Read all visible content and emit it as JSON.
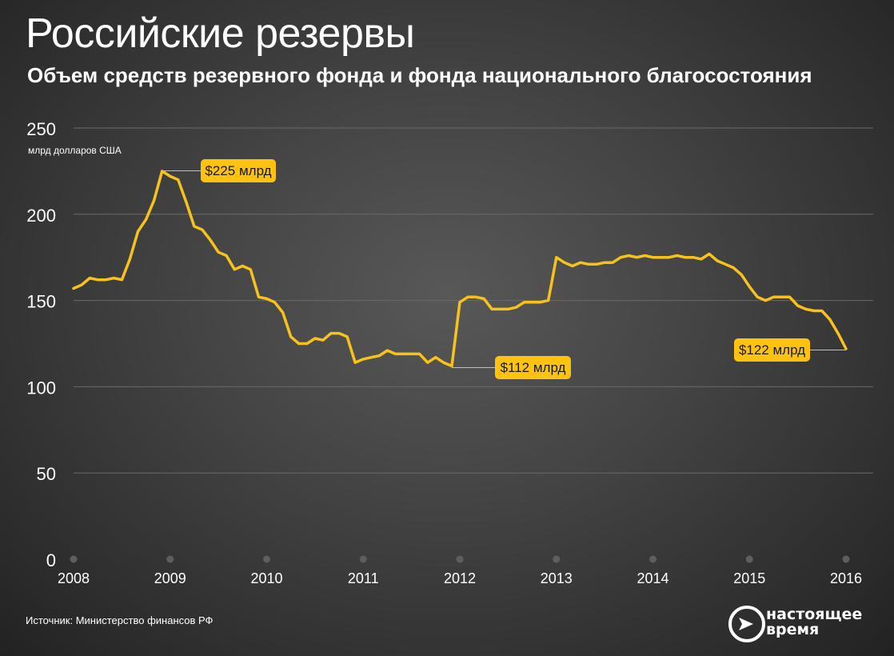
{
  "header": {
    "title": "Российские резервы",
    "subtitle": "Объем средств резервного фонда и фонда национального благосостояния"
  },
  "footer": {
    "source": "Источник: Министерство финансов РФ",
    "logo_line1": "настоящее",
    "logo_line2": "время"
  },
  "colors": {
    "line": "#f7c21b",
    "callout_bg": "#ffc20e",
    "callout_text": "#1a1a1a",
    "grid": "#6a6a6a",
    "text": "#ffffff"
  },
  "chart_data": {
    "type": "line",
    "title": "Российские резервы",
    "subtitle": "Объем средств резервного фонда и фонда национального благосостояния",
    "ylabel": "млрд долларов США",
    "ylim": [
      0,
      250
    ],
    "yticks": [
      0,
      50,
      100,
      150,
      200,
      250
    ],
    "xticks": [
      "2008",
      "2009",
      "2010",
      "2011",
      "2012",
      "2013",
      "2014",
      "2015",
      "2016"
    ],
    "xlim": [
      2008,
      2016
    ],
    "grid": true,
    "series": [
      {
        "x": [
          2008.0,
          2008.083,
          2008.167,
          2008.25,
          2008.333,
          2008.417,
          2008.5,
          2008.583,
          2008.667,
          2008.75,
          2008.833,
          2008.917,
          2009.0,
          2009.083,
          2009.167,
          2009.25,
          2009.333,
          2009.417,
          2009.5,
          2009.583,
          2009.667,
          2009.75,
          2009.833,
          2009.917,
          2010.0,
          2010.083,
          2010.167,
          2010.25,
          2010.333,
          2010.417,
          2010.5,
          2010.583,
          2010.667,
          2010.75,
          2010.833,
          2010.917,
          2011.0,
          2011.083,
          2011.167,
          2011.25,
          2011.333,
          2011.417,
          2011.5,
          2011.583,
          2011.667,
          2011.75,
          2011.833,
          2011.917,
          2012.0,
          2012.083,
          2012.167,
          2012.25,
          2012.333,
          2012.417,
          2012.5,
          2012.583,
          2012.667,
          2012.75,
          2012.833,
          2012.917,
          2013.0,
          2013.083,
          2013.167,
          2013.25,
          2013.333,
          2013.417,
          2013.5,
          2013.583,
          2013.667,
          2013.75,
          2013.833,
          2013.917,
          2014.0,
          2014.083,
          2014.167,
          2014.25,
          2014.333,
          2014.417,
          2014.5,
          2014.583,
          2014.667,
          2014.75,
          2014.833,
          2014.917,
          2015.0,
          2015.083,
          2015.167,
          2015.25,
          2015.333,
          2015.417,
          2015.5,
          2015.583,
          2015.667,
          2015.75,
          2015.833,
          2015.917,
          2016.0
        ],
        "values": [
          157,
          159,
          163,
          162,
          162,
          163,
          162,
          174,
          190,
          197,
          208,
          225,
          222,
          220,
          207,
          193,
          191,
          185,
          178,
          176,
          168,
          170,
          168,
          152,
          151,
          149,
          143,
          129,
          125,
          125,
          128,
          127,
          131,
          131,
          129,
          114,
          116,
          117,
          118,
          121,
          119,
          119,
          119,
          119,
          114,
          117,
          114,
          112,
          149,
          152,
          152,
          151,
          145,
          145,
          145,
          146,
          149,
          149,
          149,
          150,
          175,
          172,
          170,
          172,
          171,
          171,
          172,
          172,
          175,
          176,
          175,
          176,
          175,
          175,
          175,
          176,
          175,
          175,
          174,
          177,
          173,
          171,
          169,
          165,
          158,
          152,
          150,
          152,
          152,
          152,
          147,
          145,
          144,
          144,
          139,
          131,
          122
        ]
      }
    ],
    "annotations": [
      {
        "text": "$225 млрд",
        "x": 2008.917,
        "y": 225
      },
      {
        "text": "$112 млрд",
        "x": 2011.917,
        "y": 112
      },
      {
        "text": "$122 млрд",
        "x": 2016.0,
        "y": 122
      }
    ]
  }
}
